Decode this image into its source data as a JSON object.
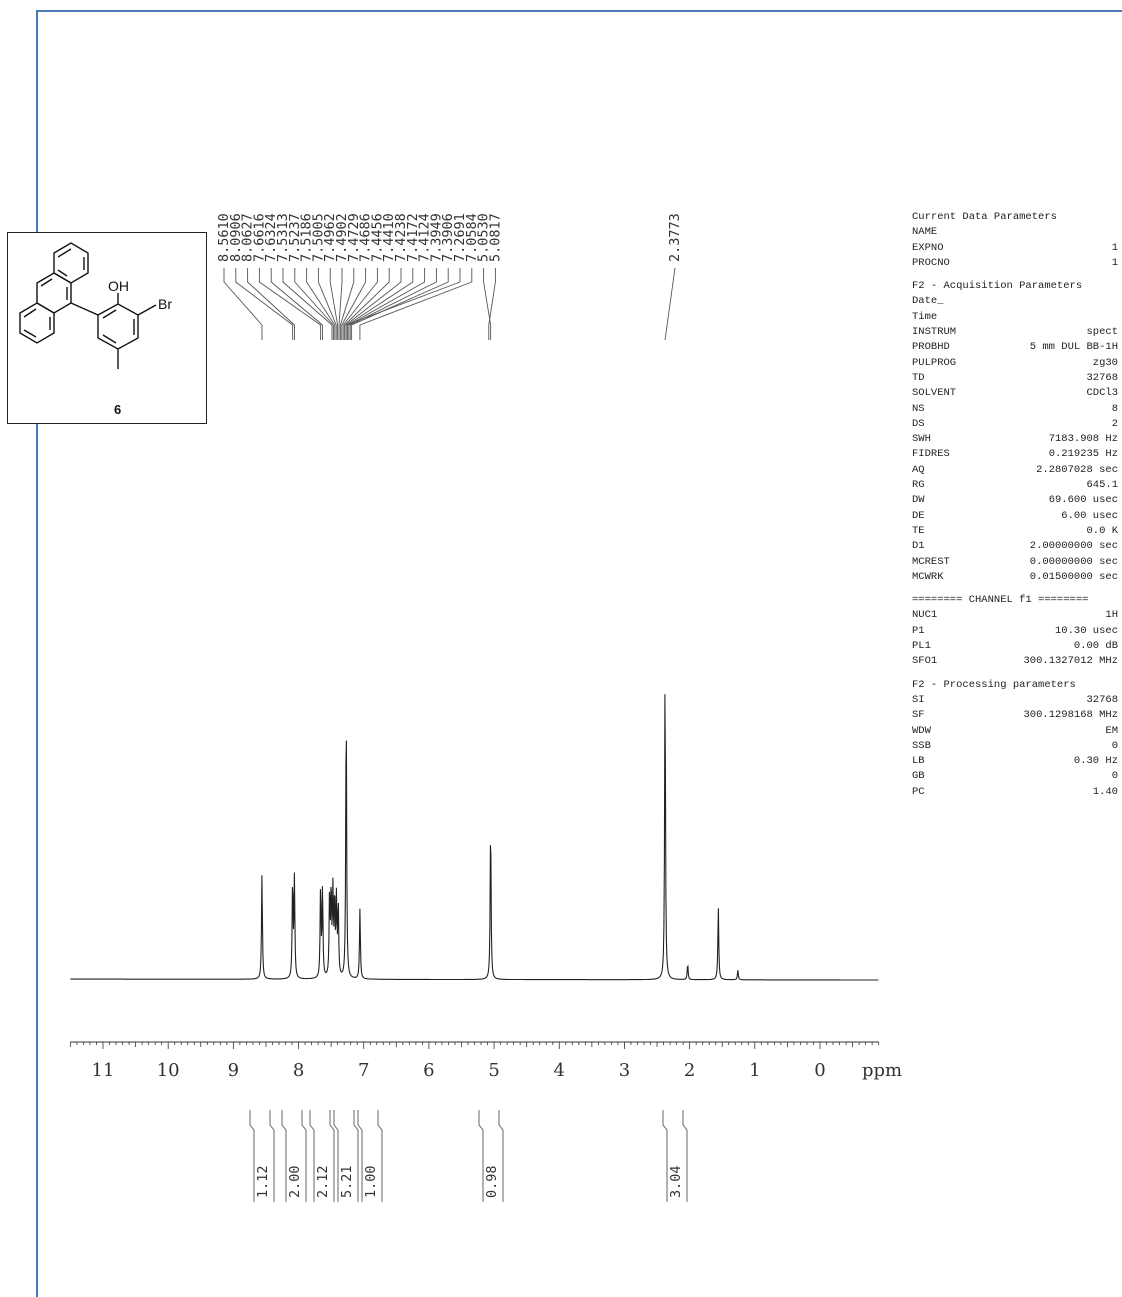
{
  "compound": {
    "label": "6",
    "substituents": {
      "hydroxyl": "OH",
      "bromo": "Br"
    }
  },
  "peak_labels": [
    "8.5610",
    "8.0906",
    "8.0627",
    "7.6616",
    "7.6324",
    "7.5313",
    "7.5237",
    "7.5186",
    "7.5005",
    "7.4962",
    "7.4902",
    "7.4729",
    "7.4686",
    "7.4456",
    "7.4410",
    "7.4238",
    "7.4172",
    "7.4124",
    "7.3949",
    "7.3906",
    "7.2691",
    "7.0584",
    "5.0530",
    "5.0817",
    "2.3773"
  ],
  "integrals": [
    "1.12",
    "2.00",
    "2.12",
    "5.21",
    "1.00",
    "0.98",
    "3.04"
  ],
  "chart_data": {
    "type": "line",
    "xlabel": "ppm",
    "x_ticks": [
      "11",
      "10",
      "9",
      "8",
      "7",
      "6",
      "5",
      "4",
      "3",
      "2",
      "1",
      "0"
    ],
    "xlim": [
      11.5,
      -0.9
    ],
    "x_reversed": true,
    "grid": false,
    "series": [
      {
        "peaks": [
          {
            "ppm": 8.561,
            "height": 0.33
          },
          {
            "ppm": 8.091,
            "height": 0.31
          },
          {
            "ppm": 8.063,
            "height": 0.31
          },
          {
            "ppm": 7.662,
            "height": 0.29
          },
          {
            "ppm": 7.632,
            "height": 0.28
          },
          {
            "ppm": 7.524,
            "height": 0.26
          },
          {
            "ppm": 7.5,
            "height": 0.27
          },
          {
            "ppm": 7.473,
            "height": 0.26
          },
          {
            "ppm": 7.446,
            "height": 0.25
          },
          {
            "ppm": 7.418,
            "height": 0.24
          },
          {
            "ppm": 7.391,
            "height": 0.23
          },
          {
            "ppm": 7.269,
            "height": 0.87
          },
          {
            "ppm": 7.058,
            "height": 0.22
          },
          {
            "ppm": 5.053,
            "height": 0.5
          },
          {
            "ppm": 2.377,
            "height": 0.97
          },
          {
            "ppm": 2.03,
            "height": 0.05
          },
          {
            "ppm": 1.56,
            "height": 0.23
          },
          {
            "ppm": 1.26,
            "height": 0.03
          }
        ]
      }
    ]
  },
  "parameters": [
    {
      "title": "Current Data Parameters",
      "rows": [
        [
          "NAME",
          ""
        ],
        [
          "EXPNO",
          "1"
        ],
        [
          "PROCNO",
          "1"
        ]
      ]
    },
    {
      "title": "F2 - Acquisition Parameters",
      "rows": [
        [
          "Date_",
          ""
        ],
        [
          "Time",
          ""
        ],
        [
          "INSTRUM",
          "spect"
        ],
        [
          "PROBHD",
          "5 mm DUL BB-1H"
        ],
        [
          "PULPROG",
          "zg30"
        ],
        [
          "TD",
          "32768"
        ],
        [
          "SOLVENT",
          "CDCl3"
        ],
        [
          "NS",
          "8"
        ],
        [
          "DS",
          "2"
        ],
        [
          "SWH",
          "7183.908 Hz"
        ],
        [
          "FIDRES",
          "0.219235 Hz"
        ],
        [
          "AQ",
          "2.2807028 sec"
        ],
        [
          "RG",
          "645.1"
        ],
        [
          "DW",
          "69.600 usec"
        ],
        [
          "DE",
          "6.00 usec"
        ],
        [
          "TE",
          "0.0 K"
        ],
        [
          "D1",
          "2.00000000 sec"
        ],
        [
          "MCREST",
          "0.00000000 sec"
        ],
        [
          "MCWRK",
          "0.01500000 sec"
        ]
      ]
    },
    {
      "title": "======== CHANNEL f1 ========",
      "rows": [
        [
          "NUC1",
          "1H"
        ],
        [
          "P1",
          "10.30 usec"
        ],
        [
          "PL1",
          "0.00 dB"
        ],
        [
          "SFO1",
          "300.1327012 MHz"
        ]
      ]
    },
    {
      "title": "F2 - Processing parameters",
      "rows": [
        [
          "SI",
          "32768"
        ],
        [
          "SF",
          "300.1298168 MHz"
        ],
        [
          "WDW",
          "EM"
        ],
        [
          "SSB",
          "0"
        ],
        [
          "LB",
          "0.30 Hz"
        ],
        [
          "GB",
          "0"
        ],
        [
          "PC",
          "1.40"
        ]
      ]
    }
  ]
}
